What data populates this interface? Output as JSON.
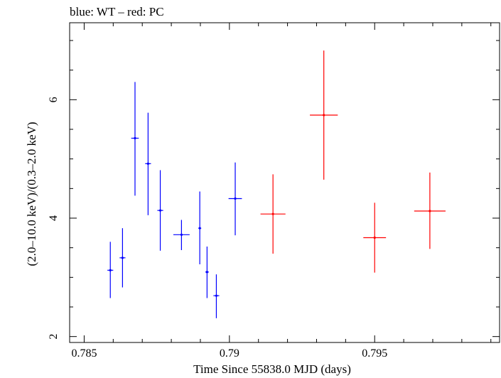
{
  "chart_data": {
    "type": "scatter",
    "title": "blue: WT – red: PC",
    "xlabel": "Time Since 55838.0 MJD (days)",
    "ylabel": "(2.0–10.0 keV)/(0.3–2.0 keV)",
    "xlim": [
      0.7845,
      0.7993
    ],
    "ylim": [
      1.9,
      7.3
    ],
    "x_ticks": [
      {
        "value": 0.785,
        "label": "0.785"
      },
      {
        "value": 0.79,
        "label": "0.79"
      },
      {
        "value": 0.795,
        "label": "0.795"
      }
    ],
    "y_ticks": [
      {
        "value": 2,
        "label": "2"
      },
      {
        "value": 4,
        "label": "4"
      },
      {
        "value": 6,
        "label": "6"
      }
    ],
    "grid": false,
    "series": [
      {
        "name": "WT",
        "color": "#0000ff",
        "points": [
          {
            "x": 0.7859,
            "xerr": 0.0001,
            "y": 3.12,
            "ylo": 2.65,
            "yhi": 3.6
          },
          {
            "x": 0.78632,
            "xerr": 0.0001,
            "y": 3.33,
            "ylo": 2.83,
            "yhi": 3.83
          },
          {
            "x": 0.78675,
            "xerr": 0.00013,
            "y": 5.35,
            "ylo": 4.38,
            "yhi": 6.3
          },
          {
            "x": 0.7872,
            "xerr": 0.0001,
            "y": 4.92,
            "ylo": 4.05,
            "yhi": 5.78
          },
          {
            "x": 0.78762,
            "xerr": 0.0001,
            "y": 4.13,
            "ylo": 3.45,
            "yhi": 4.81
          },
          {
            "x": 0.78835,
            "xerr": 0.00028,
            "y": 3.72,
            "ylo": 3.46,
            "yhi": 3.97
          },
          {
            "x": 0.78898,
            "xerr": 5e-05,
            "y": 3.83,
            "ylo": 3.22,
            "yhi": 4.45
          },
          {
            "x": 0.78923,
            "xerr": 6e-05,
            "y": 3.09,
            "ylo": 2.65,
            "yhi": 3.52
          },
          {
            "x": 0.78955,
            "xerr": 0.0001,
            "y": 2.69,
            "ylo": 2.31,
            "yhi": 3.05
          },
          {
            "x": 0.7902,
            "xerr": 0.00023,
            "y": 4.33,
            "ylo": 3.71,
            "yhi": 4.94
          }
        ]
      },
      {
        "name": "PC",
        "color": "#ff0000",
        "points": [
          {
            "x": 0.7915,
            "xerr": 0.00043,
            "y": 4.07,
            "ylo": 3.4,
            "yhi": 4.74
          },
          {
            "x": 0.79325,
            "xerr": 0.00048,
            "y": 5.74,
            "ylo": 4.65,
            "yhi": 6.83
          },
          {
            "x": 0.795,
            "xerr": 0.00039,
            "y": 3.67,
            "ylo": 3.08,
            "yhi": 4.26
          },
          {
            "x": 0.7969,
            "xerr": 0.00054,
            "y": 4.12,
            "ylo": 3.48,
            "yhi": 4.77
          }
        ]
      }
    ]
  }
}
